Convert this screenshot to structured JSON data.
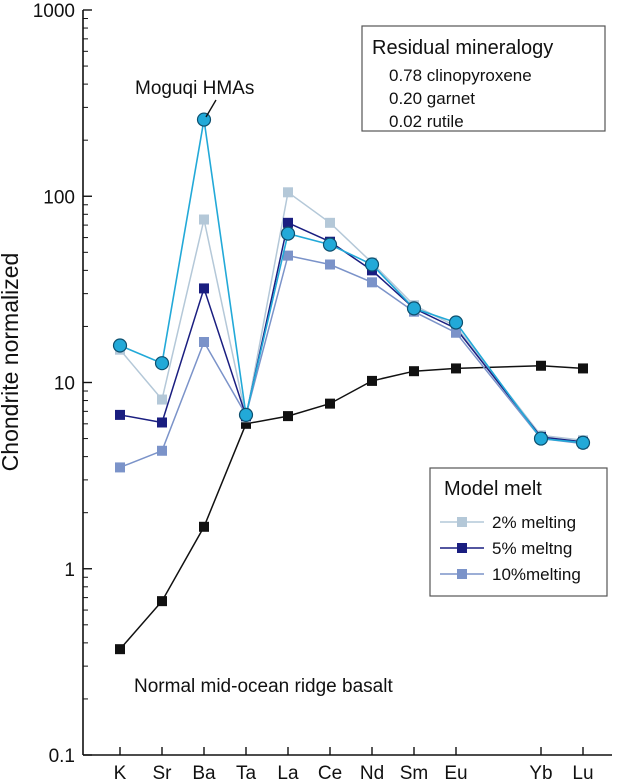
{
  "chart_data": {
    "type": "line",
    "yscale": "log",
    "ylim": [
      0.1,
      1000
    ],
    "ylabel": "Chondrite normalized",
    "xlabel": "",
    "categories": [
      "K",
      "Sr",
      "Ba",
      "Ta",
      "La",
      "Ce",
      "Nd",
      "Sm",
      "Eu",
      "Yb",
      "Lu"
    ],
    "y_ticks": [
      "0.1",
      "1",
      "10",
      "100",
      "1000"
    ],
    "grid": false,
    "series": [
      {
        "name": "2% melting",
        "color": "#b4c8d8",
        "marker": "square",
        "values": [
          15,
          8.1,
          75,
          6.5,
          105,
          72,
          44,
          26,
          20,
          5.2,
          4.9
        ]
      },
      {
        "name": "5% meltng",
        "color": "#1a1e80",
        "marker": "square",
        "values": [
          6.7,
          6.1,
          32,
          6.6,
          72,
          57,
          40,
          25,
          19.5,
          5.1,
          4.8
        ]
      },
      {
        "name": "10%melting",
        "color": "#7b93c9",
        "marker": "square",
        "values": [
          3.5,
          4.3,
          16.5,
          6.7,
          48,
          43,
          34.5,
          24,
          18.5,
          5.0,
          4.7
        ]
      },
      {
        "name": "Moguqi HMAs",
        "color": "#22a9d8",
        "marker": "circle",
        "values": [
          15.8,
          12.7,
          258,
          6.7,
          63,
          55,
          43,
          25,
          21,
          5.0,
          4.75
        ]
      },
      {
        "name": "Normal mid-ocean ridge basalt",
        "color": "#111111",
        "marker": "square",
        "values": [
          0.37,
          0.67,
          1.68,
          6.0,
          6.6,
          7.7,
          10.2,
          11.5,
          11.9,
          12.3,
          11.9
        ]
      }
    ],
    "annotations": {
      "moguqi": "Moguqi HMAs",
      "morb": "Normal mid-ocean ridge basalt"
    },
    "residual_box": {
      "title": "Residual mineralogy",
      "lines": [
        "0.78 clinopyroxene",
        "0.20 garnet",
        "0.02 rutile"
      ]
    },
    "legend": {
      "title": "Model melt",
      "placement": "bottom-right",
      "entries": [
        "2% melting",
        "5% meltng",
        "10%melting"
      ]
    }
  }
}
